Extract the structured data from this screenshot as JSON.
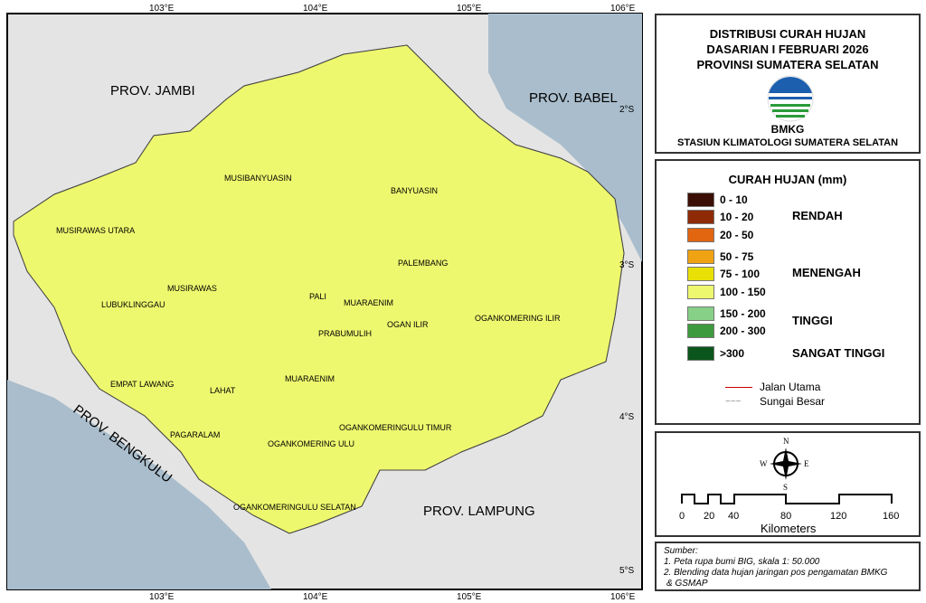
{
  "map": {
    "lon_labels": [
      "103°E",
      "104°E",
      "105°E",
      "106°E"
    ],
    "lat_labels": [
      "2°S",
      "3°S",
      "4°S",
      "5°S"
    ],
    "provinces": [
      "PROV. JAMBI",
      "PROV. BABEL",
      "PROV. BENGKULU",
      "PROV. LAMPUNG"
    ],
    "regencies": [
      "MUSIBANYUASIN",
      "BANYUASIN",
      "MUSIRAWAS UTARA",
      "MUSIRAWAS",
      "LUBUKLINGGAU",
      "PALEMBANG",
      "PALI",
      "MUARAENIM",
      "PRABUMULIH",
      "OGAN ILIR",
      "OGANKOMERING ILIR",
      "EMPAT LAWANG",
      "LAHAT",
      "MUARAENIM",
      "PAGARALAM",
      "OGANKOMERING ULU",
      "OGANKOMERINGULU TIMUR",
      "OGANKOMERINGULU SELATAN"
    ],
    "colors": {
      "sea": "#a9bdcc",
      "outside": "#e4e4e4"
    }
  },
  "title": {
    "line1": "DISTRIBUSI CURAH HUJAN",
    "line2": "DASARIAN I FEBRUARI 2026",
    "line3": "PROVINSI SUMATERA SELATAN",
    "org": "BMKG",
    "station": "STASIUN KLIMATOLOGI SUMATERA SELATAN"
  },
  "legend": {
    "title": "CURAH HUJAN (mm)",
    "classes": [
      {
        "range": "0 - 10",
        "color": "#3b0f06"
      },
      {
        "range": "10 - 20",
        "color": "#8e2b06"
      },
      {
        "range": "20 - 50",
        "color": "#e2650f"
      },
      {
        "range": "50 - 75",
        "color": "#f0a312"
      },
      {
        "range": "75 - 100",
        "color": "#e8e006"
      },
      {
        "range": "100 - 150",
        "color": "#eef86e"
      },
      {
        "range": "150 - 200",
        "color": "#86d088"
      },
      {
        "range": "200 - 300",
        "color": "#3e9a3e"
      },
      {
        "range": ">300",
        "color": "#0b561c"
      }
    ],
    "categories": [
      "RENDAH",
      "MENENGAH",
      "TINGGI",
      "SANGAT TINGGI"
    ],
    "road": "Jalan Utama",
    "river": "Sungai Besar"
  },
  "compass": {
    "n": "N",
    "s": "S",
    "e": "E",
    "w": "W"
  },
  "scale": {
    "ticks": [
      "0",
      "20",
      "40",
      "80",
      "120",
      "160"
    ],
    "unit": "Kilometers"
  },
  "source": {
    "title": "Sumber:",
    "items": [
      "1. Peta rupa bumi BIG, skala 1: 50.000",
      "2. Blending data hujan jaringan pos pengamatan BMKG",
      "& GSMAP"
    ]
  }
}
